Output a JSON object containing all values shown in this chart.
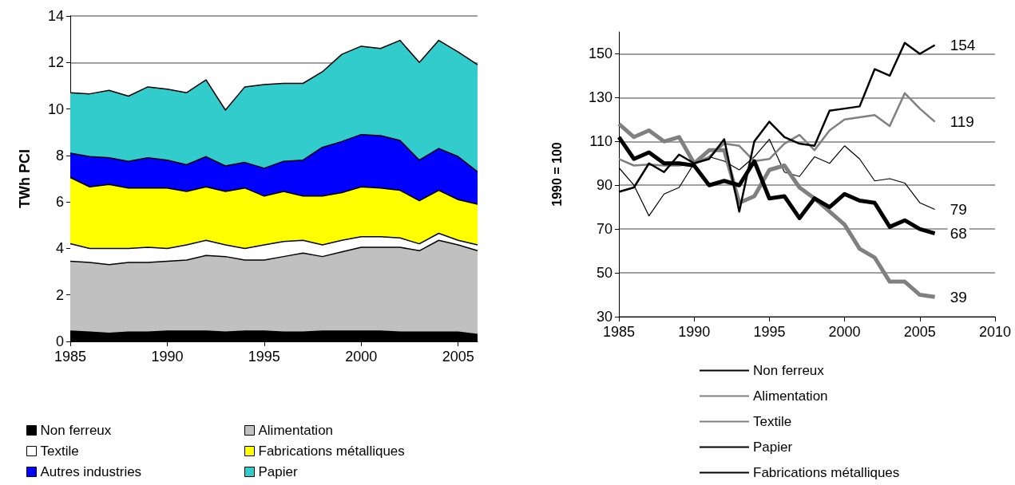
{
  "chart_data": [
    {
      "type": "area",
      "stacked": true,
      "ylabel": "TWh PCI",
      "x": [
        1985,
        1986,
        1987,
        1988,
        1989,
        1990,
        1991,
        1992,
        1993,
        1994,
        1995,
        1996,
        1997,
        1998,
        1999,
        2000,
        2001,
        2002,
        2003,
        2004,
        2005,
        2006
      ],
      "xlim": [
        1985,
        2006
      ],
      "xticks": [
        1985,
        1990,
        1995,
        2000,
        2005
      ],
      "ylim": [
        0,
        14
      ],
      "yticks": [
        0,
        2,
        4,
        6,
        8,
        10,
        12,
        14
      ],
      "grid": "y",
      "legend": "bottom",
      "series": [
        {
          "name": "Non ferreux",
          "color": "#000000",
          "values": [
            0.45,
            0.4,
            0.35,
            0.4,
            0.4,
            0.45,
            0.45,
            0.45,
            0.4,
            0.45,
            0.45,
            0.4,
            0.4,
            0.45,
            0.45,
            0.45,
            0.45,
            0.4,
            0.4,
            0.4,
            0.4,
            0.3
          ]
        },
        {
          "name": "Alimentation",
          "color": "#c0c0c0",
          "values": [
            3.0,
            3.0,
            2.95,
            3.0,
            3.0,
            3.0,
            3.05,
            3.25,
            3.25,
            3.05,
            3.05,
            3.25,
            3.4,
            3.2,
            3.4,
            3.6,
            3.6,
            3.65,
            3.5,
            3.95,
            3.75,
            3.6
          ]
        },
        {
          "name": "Textile",
          "color": "#ffffff",
          "values": [
            0.75,
            0.6,
            0.7,
            0.6,
            0.65,
            0.55,
            0.65,
            0.65,
            0.5,
            0.5,
            0.65,
            0.65,
            0.55,
            0.5,
            0.5,
            0.45,
            0.45,
            0.4,
            0.3,
            0.3,
            0.2,
            0.25
          ]
        },
        {
          "name": "Fabrications métalliques",
          "color": "#ffff00",
          "values": [
            2.85,
            2.65,
            2.75,
            2.6,
            2.55,
            2.6,
            2.3,
            2.3,
            2.3,
            2.6,
            2.1,
            2.15,
            1.9,
            2.1,
            2.05,
            2.15,
            2.1,
            2.05,
            1.85,
            1.85,
            1.75,
            1.75
          ]
        },
        {
          "name": "Autres industries",
          "color": "#0000ff",
          "values": [
            1.05,
            1.3,
            1.15,
            1.15,
            1.3,
            1.2,
            1.15,
            1.3,
            1.1,
            1.1,
            1.2,
            1.3,
            1.55,
            2.1,
            2.2,
            2.25,
            2.25,
            2.15,
            1.75,
            1.8,
            1.85,
            1.4
          ]
        },
        {
          "name": "Papier",
          "color": "#33cccc",
          "values": [
            2.6,
            2.7,
            2.9,
            2.8,
            3.05,
            3.05,
            3.1,
            3.3,
            2.4,
            3.25,
            3.6,
            3.35,
            3.3,
            3.25,
            3.75,
            3.8,
            3.75,
            4.3,
            4.2,
            4.65,
            4.5,
            4.6
          ]
        }
      ]
    },
    {
      "type": "line",
      "ylabel": "1990 = 100",
      "x": [
        1985,
        1986,
        1987,
        1988,
        1989,
        1990,
        1991,
        1992,
        1993,
        1994,
        1995,
        1996,
        1997,
        1998,
        1999,
        2000,
        2001,
        2002,
        2003,
        2004,
        2005,
        2006
      ],
      "xlim": [
        1985,
        2010
      ],
      "xticks": [
        1985,
        1990,
        1995,
        2000,
        2005,
        2010
      ],
      "ylim": [
        30,
        160
      ],
      "yticks": [
        30,
        50,
        70,
        90,
        110,
        130,
        150
      ],
      "grid": "y",
      "legend": "bottom",
      "marker": "none",
      "series": [
        {
          "name": "Non ferreux",
          "color": "#000000",
          "values": [
            98,
            90,
            76,
            86,
            89,
            100,
            103,
            101,
            97,
            103,
            111,
            96,
            94,
            103,
            100,
            108,
            102,
            92,
            93,
            91,
            82,
            79
          ],
          "value_labels": [
            null,
            null,
            null,
            null,
            null,
            null,
            null,
            null,
            null,
            null,
            null,
            null,
            null,
            null,
            null,
            null,
            null,
            null,
            null,
            null,
            null,
            "79"
          ]
        },
        {
          "name": "Alimentation",
          "color": "#808080",
          "values": [
            102,
            99,
            99.5,
            99,
            99,
            100,
            103,
            109,
            108,
            101,
            102,
            109,
            113,
            106,
            115,
            120,
            121,
            122,
            117,
            132,
            125,
            119
          ],
          "value_labels": [
            null,
            null,
            null,
            null,
            null,
            null,
            null,
            null,
            null,
            null,
            null,
            null,
            null,
            null,
            null,
            null,
            null,
            null,
            null,
            null,
            null,
            "119"
          ]
        },
        {
          "name": "Textile",
          "color": "#808080",
          "values": [
            118,
            112,
            115,
            110,
            112,
            100,
            106,
            106,
            82,
            85,
            97,
            99,
            89,
            84,
            78,
            72,
            61,
            57,
            46,
            46,
            40,
            39
          ],
          "value_labels": [
            null,
            null,
            null,
            null,
            null,
            null,
            null,
            null,
            null,
            null,
            null,
            null,
            null,
            null,
            null,
            null,
            null,
            null,
            null,
            null,
            null,
            "39"
          ]
        },
        {
          "name": "Papier",
          "color": "#000000",
          "values": [
            87,
            89,
            100,
            96,
            104,
            100,
            102,
            111,
            78,
            110,
            119,
            112,
            109,
            108,
            124,
            125,
            126,
            143,
            140,
            155,
            150,
            154
          ],
          "value_labels": [
            null,
            null,
            null,
            null,
            null,
            null,
            null,
            null,
            null,
            null,
            null,
            null,
            null,
            null,
            null,
            null,
            null,
            null,
            null,
            null,
            null,
            "154"
          ]
        },
        {
          "name": "Fabrications métalliques",
          "color": "#000000",
          "values": [
            112,
            102,
            105,
            100,
            100,
            99,
            90,
            92,
            90,
            101,
            84,
            85,
            75,
            84,
            80,
            86,
            83,
            82,
            71,
            74,
            70,
            68
          ],
          "value_labels": [
            null,
            null,
            null,
            null,
            null,
            null,
            null,
            null,
            null,
            null,
            null,
            null,
            null,
            null,
            null,
            null,
            null,
            null,
            null,
            null,
            null,
            "68"
          ]
        }
      ]
    }
  ]
}
